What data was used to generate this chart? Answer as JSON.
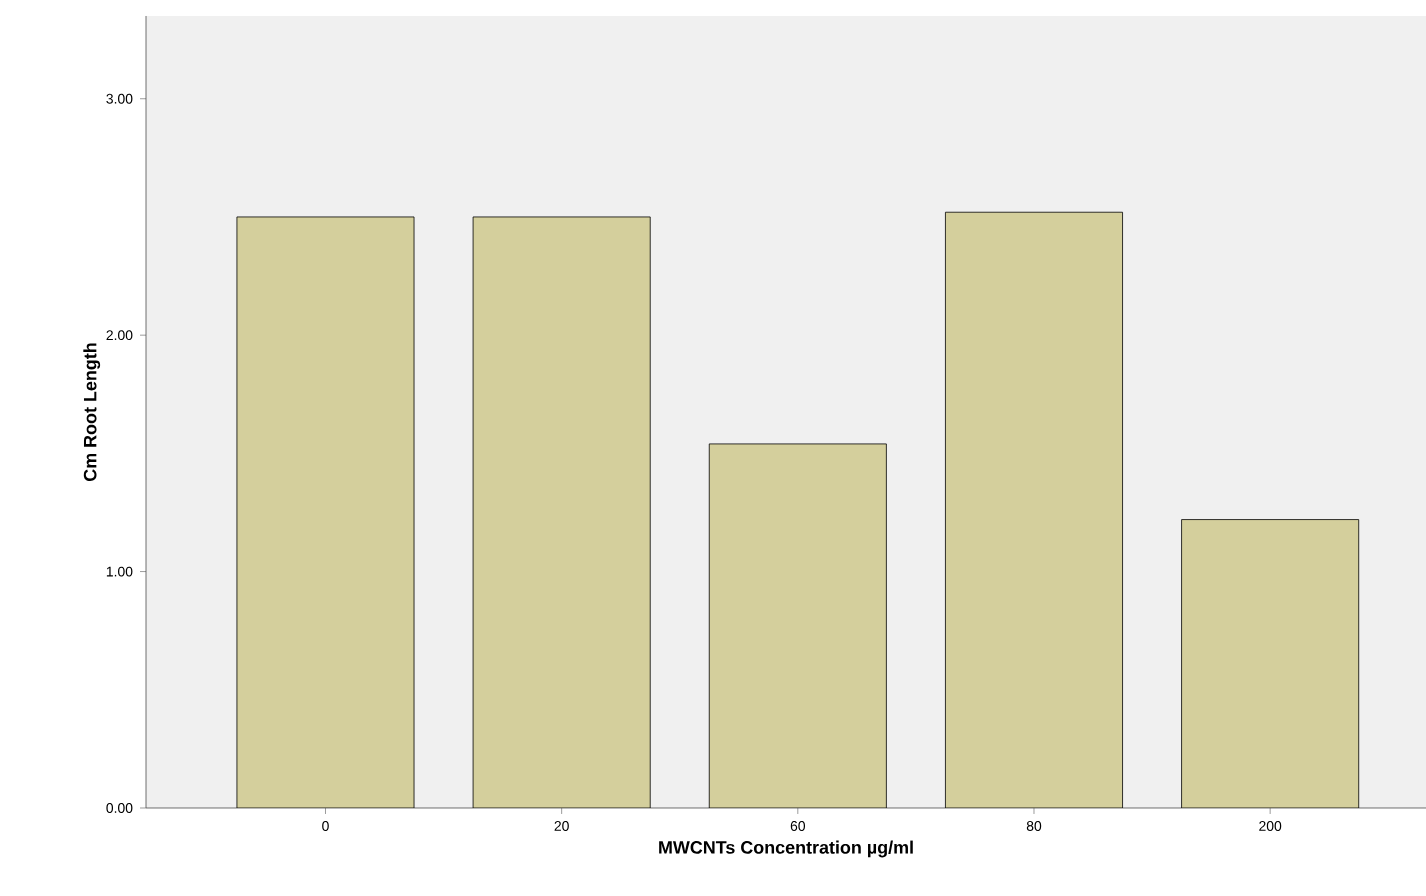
{
  "chart_data": {
    "type": "bar",
    "xlabel": "MWCNTs Concentration µg/ml",
    "ylabel": "Cm Root Length",
    "categories": [
      "0",
      "20",
      "60",
      "80",
      "200"
    ],
    "values": [
      2.5,
      2.5,
      1.54,
      2.52,
      1.22
    ],
    "color": "#d4cf9c",
    "ylim": [
      0,
      3.35
    ],
    "yticks": [
      {
        "value": 0,
        "label": "0.00"
      },
      {
        "value": 1,
        "label": "1.00"
      },
      {
        "value": 2,
        "label": "2.00"
      },
      {
        "value": 3,
        "label": "3.00"
      }
    ],
    "grid": false
  }
}
